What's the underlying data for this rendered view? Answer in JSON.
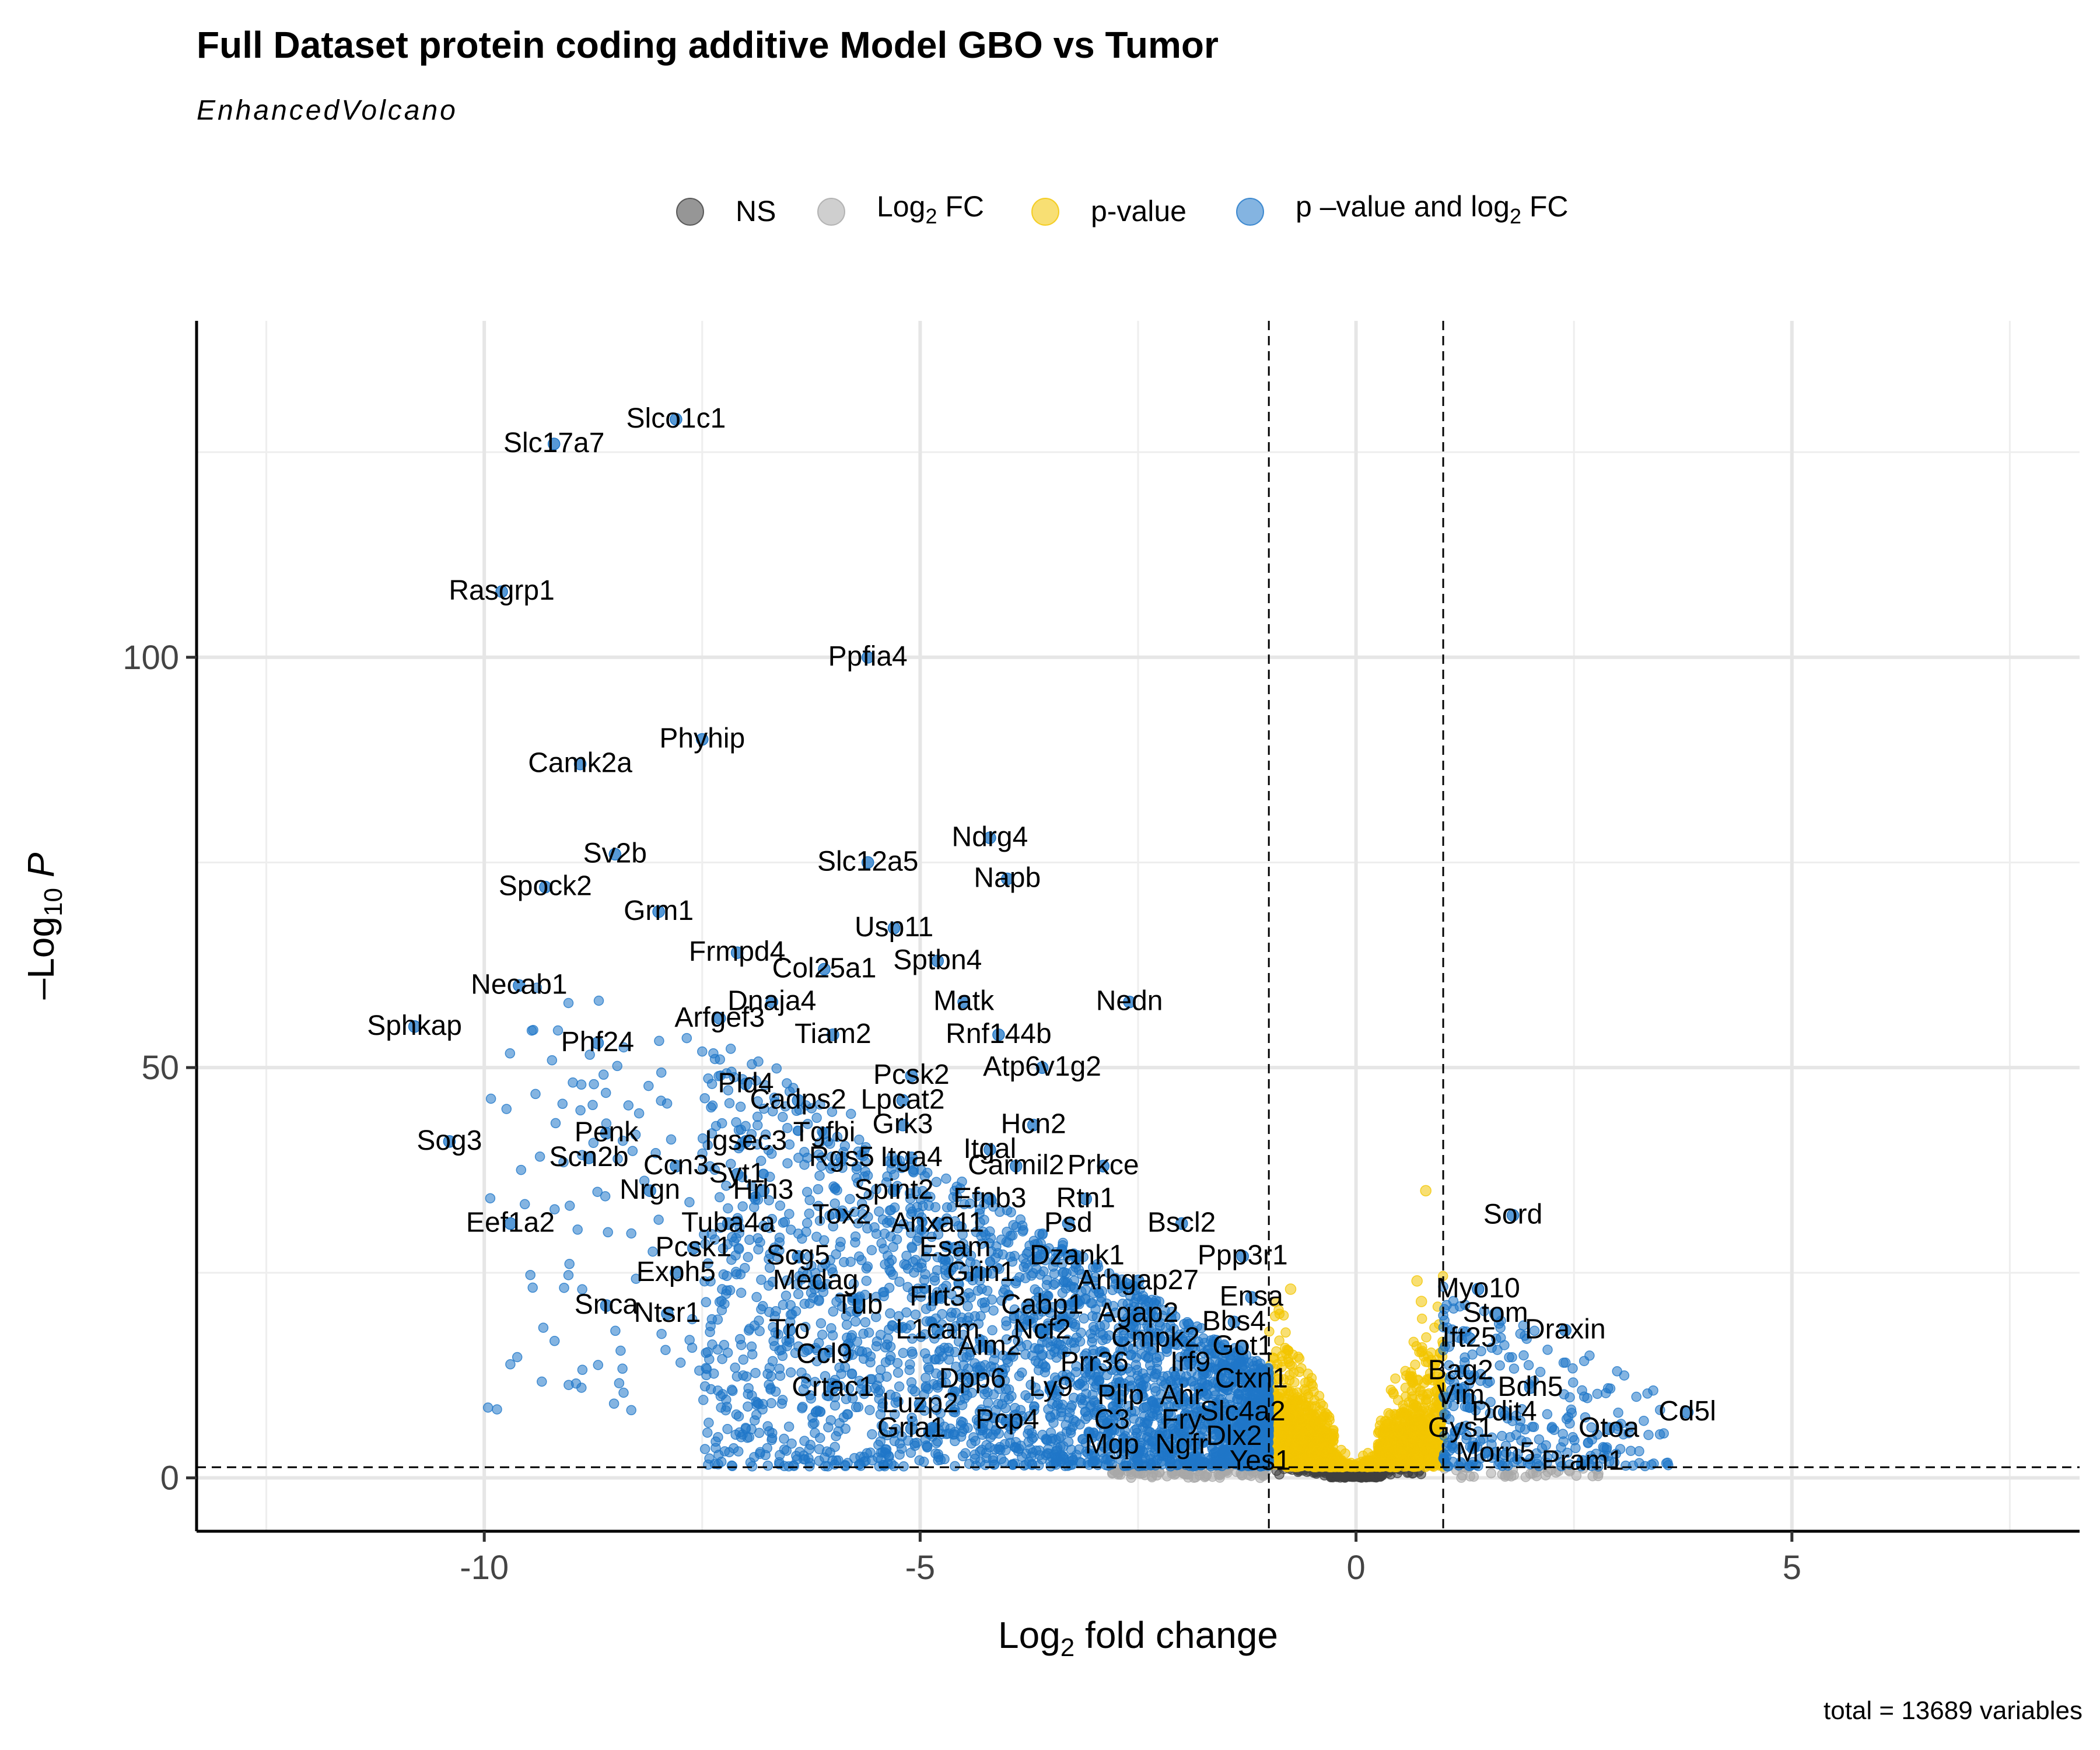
{
  "chart_data": {
    "type": "scatter",
    "title": "Full Dataset protein coding additive Model GBO vs Tumor",
    "subtitle": "EnhancedVolcano",
    "caption": "total = 13689 variables",
    "xlabel": {
      "main": "Log",
      "sub": "2",
      "rest": " fold change"
    },
    "ylabel": {
      "pre": "–Log",
      "sub": "10",
      "italic": "P"
    },
    "xlim": [
      -13.3,
      8.3
    ],
    "ylim": [
      -6.5,
      141
    ],
    "x_ticks": [
      -10,
      -5,
      0,
      5
    ],
    "x_tick_labels": [
      "-10",
      "-5",
      "0",
      "5"
    ],
    "y_ticks": [
      0,
      50,
      100
    ],
    "y_tick_labels": [
      "0",
      "50",
      "100"
    ],
    "grid": true,
    "fc_cutoff": 1,
    "p_cutoff_line": 1.3,
    "colors": {
      "NS": "#404040",
      "FC": "#a8a8a8",
      "P": "#f2c500",
      "P_FC": "#1f77c8"
    },
    "legend": {
      "position": "top",
      "items": [
        {
          "key": "NS",
          "label": "NS"
        },
        {
          "key": "FC",
          "label_main": "Log",
          "label_sub": "2",
          "label_rest": " FC"
        },
        {
          "key": "P",
          "label": "p-value"
        },
        {
          "key": "P_FC",
          "label_main": "p –value and log",
          "label_sub": "2",
          "label_rest": " FC"
        }
      ]
    },
    "labeled_points": [
      {
        "name": "Slco1c1",
        "x": -7.8,
        "y": 129
      },
      {
        "name": "Slc17a7",
        "x": -9.2,
        "y": 126
      },
      {
        "name": "Rasgrp1",
        "x": -9.8,
        "y": 108
      },
      {
        "name": "Ppfia4",
        "x": -5.6,
        "y": 100
      },
      {
        "name": "Phyhip",
        "x": -7.5,
        "y": 90
      },
      {
        "name": "Camk2a",
        "x": -8.9,
        "y": 87
      },
      {
        "name": "Sv2b",
        "x": -8.5,
        "y": 76
      },
      {
        "name": "Slc12a5",
        "x": -5.6,
        "y": 75
      },
      {
        "name": "Ndrg4",
        "x": -4.2,
        "y": 78
      },
      {
        "name": "Napb",
        "x": -4.0,
        "y": 73
      },
      {
        "name": "Spock2",
        "x": -9.3,
        "y": 72
      },
      {
        "name": "Grm1",
        "x": -8.0,
        "y": 69
      },
      {
        "name": "Usp11",
        "x": -5.3,
        "y": 67
      },
      {
        "name": "Frmpd4",
        "x": -7.1,
        "y": 64
      },
      {
        "name": "Col25a1",
        "x": -6.1,
        "y": 62
      },
      {
        "name": "Sptbn4",
        "x": -4.8,
        "y": 63
      },
      {
        "name": "Necab1",
        "x": -9.6,
        "y": 60
      },
      {
        "name": "Dnaja4",
        "x": -6.7,
        "y": 58
      },
      {
        "name": "Matk",
        "x": -4.5,
        "y": 58
      },
      {
        "name": "Nedn",
        "x": -2.6,
        "y": 58
      },
      {
        "name": "Sphkap",
        "x": -10.8,
        "y": 55
      },
      {
        "name": "Arfgef3",
        "x": -7.3,
        "y": 56
      },
      {
        "name": "Tiam2",
        "x": -6.0,
        "y": 54
      },
      {
        "name": "Rnf144b",
        "x": -4.1,
        "y": 54
      },
      {
        "name": "Phf24",
        "x": -8.7,
        "y": 53
      },
      {
        "name": "Atp6v1g2",
        "x": -3.6,
        "y": 50
      },
      {
        "name": "Pcsk2",
        "x": -5.1,
        "y": 49
      },
      {
        "name": "Pld4",
        "x": -7.0,
        "y": 48
      },
      {
        "name": "Cadps2",
        "x": -6.4,
        "y": 46
      },
      {
        "name": "Lpcat2",
        "x": -5.2,
        "y": 46
      },
      {
        "name": "Grk3",
        "x": -5.2,
        "y": 43
      },
      {
        "name": "Hcn2",
        "x": -3.7,
        "y": 43
      },
      {
        "name": "Penk",
        "x": -8.6,
        "y": 42
      },
      {
        "name": "Tgfbi",
        "x": -6.1,
        "y": 42
      },
      {
        "name": "Sog3",
        "x": -10.4,
        "y": 41
      },
      {
        "name": "Igsec3",
        "x": -7.0,
        "y": 41
      },
      {
        "name": "Itgal",
        "x": -4.2,
        "y": 40
      },
      {
        "name": "Scn2b",
        "x": -8.8,
        "y": 39
      },
      {
        "name": "Rgs5",
        "x": -5.9,
        "y": 39
      },
      {
        "name": "Itga4",
        "x": -5.1,
        "y": 39
      },
      {
        "name": "Carmil2",
        "x": -3.9,
        "y": 38
      },
      {
        "name": "Prkce",
        "x": -2.9,
        "y": 38
      },
      {
        "name": "Ccn3",
        "x": -7.8,
        "y": 38
      },
      {
        "name": "Syt1",
        "x": -7.1,
        "y": 37
      },
      {
        "name": "Nrgn",
        "x": -8.1,
        "y": 35
      },
      {
        "name": "Hrh3",
        "x": -6.8,
        "y": 35
      },
      {
        "name": "Spint2",
        "x": -5.3,
        "y": 35
      },
      {
        "name": "Efnb3",
        "x": -4.2,
        "y": 34
      },
      {
        "name": "Rtn1",
        "x": -3.1,
        "y": 34
      },
      {
        "name": "Eef1a2",
        "x": -9.7,
        "y": 31
      },
      {
        "name": "Tox2",
        "x": -5.9,
        "y": 32
      },
      {
        "name": "Tuba4a",
        "x": -7.2,
        "y": 31
      },
      {
        "name": "Anxa11",
        "x": -4.8,
        "y": 31
      },
      {
        "name": "Psd",
        "x": -3.3,
        "y": 31
      },
      {
        "name": "Bscl2",
        "x": -2.0,
        "y": 31
      },
      {
        "name": "Pcsk1",
        "x": -7.6,
        "y": 28
      },
      {
        "name": "Esam",
        "x": -4.6,
        "y": 28
      },
      {
        "name": "Scg5",
        "x": -6.4,
        "y": 27
      },
      {
        "name": "Dzank1",
        "x": -3.2,
        "y": 27
      },
      {
        "name": "Ppp3r1",
        "x": -1.3,
        "y": 27
      },
      {
        "name": "Exph5",
        "x": -7.8,
        "y": 25
      },
      {
        "name": "Grin1",
        "x": -4.3,
        "y": 25
      },
      {
        "name": "Medag",
        "x": -6.2,
        "y": 24
      },
      {
        "name": "Arhgap27",
        "x": -2.5,
        "y": 24
      },
      {
        "name": "Flrt3",
        "x": -4.8,
        "y": 22
      },
      {
        "name": "Ensa",
        "x": -1.2,
        "y": 22
      },
      {
        "name": "Snca",
        "x": -8.6,
        "y": 21
      },
      {
        "name": "Tub",
        "x": -5.7,
        "y": 21
      },
      {
        "name": "Cabp1",
        "x": -3.6,
        "y": 21
      },
      {
        "name": "Agap2",
        "x": -2.5,
        "y": 20
      },
      {
        "name": "Ntsr1",
        "x": -7.9,
        "y": 20
      },
      {
        "name": "Bbs4",
        "x": -1.4,
        "y": 19
      },
      {
        "name": "L1cam",
        "x": -4.8,
        "y": 18
      },
      {
        "name": "Tro",
        "x": -6.5,
        "y": 18
      },
      {
        "name": "Ncf2",
        "x": -3.6,
        "y": 18
      },
      {
        "name": "Cmpk2",
        "x": -2.3,
        "y": 17
      },
      {
        "name": "Aim2",
        "x": -4.2,
        "y": 16
      },
      {
        "name": "Ccl9",
        "x": -6.1,
        "y": 15
      },
      {
        "name": "Got1",
        "x": -1.3,
        "y": 16
      },
      {
        "name": "Prr36",
        "x": -3.0,
        "y": 14
      },
      {
        "name": "Irf9",
        "x": -1.9,
        "y": 14
      },
      {
        "name": "Ctxn1",
        "x": -1.2,
        "y": 12
      },
      {
        "name": "Dpp6",
        "x": -4.4,
        "y": 12
      },
      {
        "name": "Crtac1",
        "x": -6.0,
        "y": 11
      },
      {
        "name": "Ly9",
        "x": -3.5,
        "y": 11
      },
      {
        "name": "Pllp",
        "x": -2.7,
        "y": 10
      },
      {
        "name": "Ahr",
        "x": -2.0,
        "y": 10
      },
      {
        "name": "Luzp2",
        "x": -5.0,
        "y": 9
      },
      {
        "name": "Slc4a2",
        "x": -1.3,
        "y": 8
      },
      {
        "name": "Pcp4",
        "x": -4.0,
        "y": 7
      },
      {
        "name": "C3",
        "x": -2.8,
        "y": 7
      },
      {
        "name": "Fry",
        "x": -2.0,
        "y": 7
      },
      {
        "name": "Gria1",
        "x": -5.1,
        "y": 6
      },
      {
        "name": "Dlx2",
        "x": -1.4,
        "y": 5
      },
      {
        "name": "Mgp",
        "x": -2.8,
        "y": 4
      },
      {
        "name": "Ngfr",
        "x": -2.0,
        "y": 4
      },
      {
        "name": "Yes1",
        "x": -1.1,
        "y": 2
      },
      {
        "name": "Sord",
        "x": 1.8,
        "y": 32
      },
      {
        "name": "Myo10",
        "x": 1.4,
        "y": 23
      },
      {
        "name": "Stom",
        "x": 1.6,
        "y": 20
      },
      {
        "name": "Draxin",
        "x": 2.4,
        "y": 18
      },
      {
        "name": "Ift25",
        "x": 1.3,
        "y": 17
      },
      {
        "name": "Bag2",
        "x": 1.2,
        "y": 13
      },
      {
        "name": "Bdh5",
        "x": 2.0,
        "y": 11
      },
      {
        "name": "Vim",
        "x": 1.2,
        "y": 10
      },
      {
        "name": "Ddit4",
        "x": 1.7,
        "y": 8
      },
      {
        "name": "Cd5l",
        "x": 3.8,
        "y": 8
      },
      {
        "name": "Gys1",
        "x": 1.2,
        "y": 6
      },
      {
        "name": "Otoa",
        "x": 2.9,
        "y": 6
      },
      {
        "name": "Morn5",
        "x": 1.6,
        "y": 3
      },
      {
        "name": "Pram1",
        "x": 2.6,
        "y": 2
      }
    ]
  }
}
